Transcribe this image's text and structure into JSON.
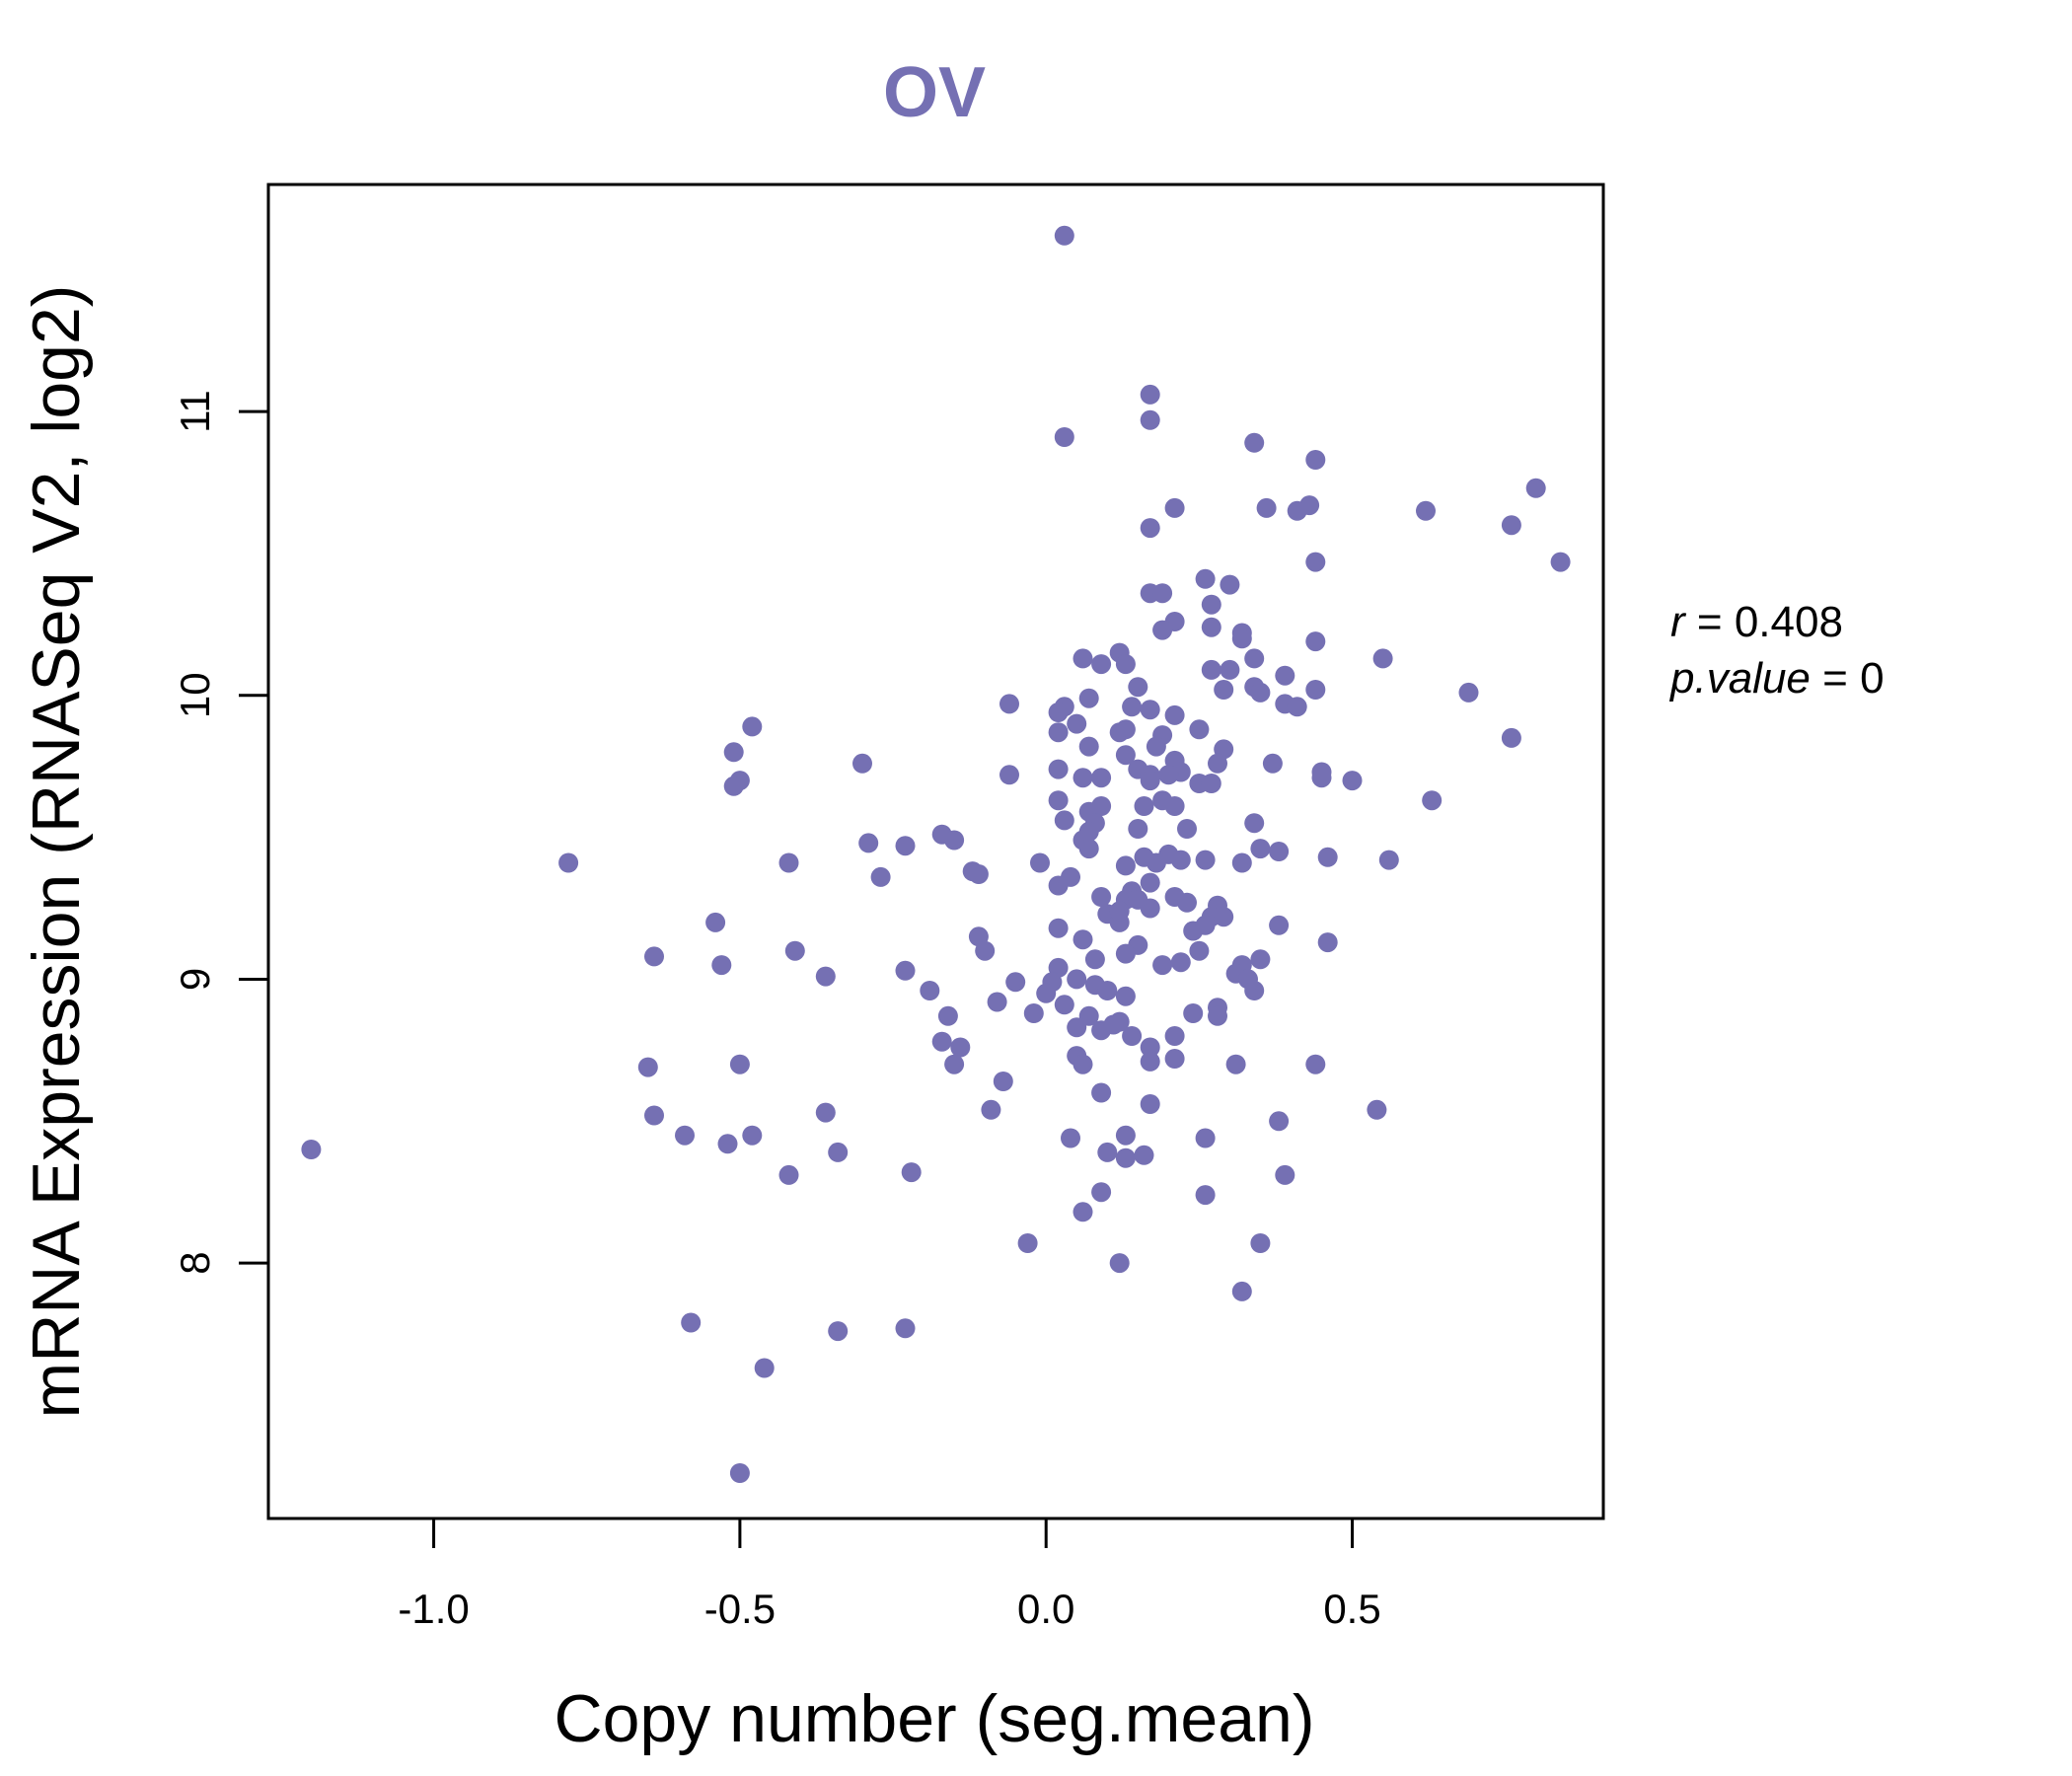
{
  "chart_data": {
    "type": "scatter",
    "title": "OV",
    "xlabel": "Copy number (seg.mean)",
    "ylabel": "mRNA Expression (RNASeq V2, log2)",
    "xlim": [
      -1.27,
      0.91
    ],
    "ylim": [
      7.1,
      11.8
    ],
    "xticks": [
      -1.0,
      -0.5,
      0.0,
      0.5
    ],
    "xtick_labels": [
      "-1.0",
      "-0.5",
      "0.0",
      "0.5"
    ],
    "yticks": [
      8,
      9,
      10,
      11
    ],
    "ytick_labels": [
      "8",
      "9",
      "10",
      "11"
    ],
    "point_color": "#7570b3",
    "stats": {
      "r_symbol": "r",
      "eq": "=",
      "r_value": "0.408",
      "p_symbol": "p.value",
      "p_value": "0"
    },
    "points": [
      [
        0.03,
        11.62
      ],
      [
        0.17,
        11.06
      ],
      [
        0.03,
        10.91
      ],
      [
        0.17,
        10.97
      ],
      [
        0.34,
        10.89
      ],
      [
        0.44,
        10.83
      ],
      [
        0.8,
        10.73
      ],
      [
        0.21,
        10.66
      ],
      [
        0.36,
        10.66
      ],
      [
        0.41,
        10.65
      ],
      [
        0.43,
        10.67
      ],
      [
        0.62,
        10.65
      ],
      [
        0.76,
        10.6
      ],
      [
        0.17,
        10.59
      ],
      [
        0.84,
        10.47
      ],
      [
        0.44,
        10.47
      ],
      [
        0.26,
        10.41
      ],
      [
        0.3,
        10.39
      ],
      [
        0.17,
        10.36
      ],
      [
        0.19,
        10.36
      ],
      [
        0.27,
        10.32
      ],
      [
        0.21,
        10.26
      ],
      [
        0.19,
        10.23
      ],
      [
        0.27,
        10.24
      ],
      [
        0.32,
        10.22
      ],
      [
        0.44,
        10.19
      ],
      [
        0.32,
        10.2
      ],
      [
        0.12,
        10.15
      ],
      [
        0.06,
        10.13
      ],
      [
        0.09,
        10.11
      ],
      [
        0.13,
        10.11
      ],
      [
        0.34,
        10.13
      ],
      [
        0.55,
        10.13
      ],
      [
        0.27,
        10.09
      ],
      [
        0.3,
        10.09
      ],
      [
        0.39,
        10.07
      ],
      [
        0.15,
        10.03
      ],
      [
        0.29,
        10.02
      ],
      [
        0.34,
        10.03
      ],
      [
        0.35,
        10.01
      ],
      [
        0.44,
        10.02
      ],
      [
        0.69,
        10.01
      ],
      [
        0.07,
        9.99
      ],
      [
        0.03,
        9.96
      ],
      [
        -0.06,
        9.97
      ],
      [
        0.02,
        9.94
      ],
      [
        0.14,
        9.96
      ],
      [
        0.17,
        9.95
      ],
      [
        0.21,
        9.93
      ],
      [
        0.39,
        9.97
      ],
      [
        0.41,
        9.96
      ],
      [
        -0.48,
        9.89
      ],
      [
        0.02,
        9.87
      ],
      [
        0.05,
        9.9
      ],
      [
        0.12,
        9.87
      ],
      [
        0.13,
        9.88
      ],
      [
        0.19,
        9.86
      ],
      [
        0.25,
        9.88
      ],
      [
        -0.51,
        9.8
      ],
      [
        0.07,
        9.82
      ],
      [
        0.13,
        9.79
      ],
      [
        0.18,
        9.82
      ],
      [
        0.29,
        9.81
      ],
      [
        0.76,
        9.85
      ],
      [
        -0.3,
        9.76
      ],
      [
        0.02,
        9.74
      ],
      [
        0.15,
        9.74
      ],
      [
        0.17,
        9.72
      ],
      [
        0.21,
        9.77
      ],
      [
        0.22,
        9.73
      ],
      [
        0.28,
        9.76
      ],
      [
        0.37,
        9.76
      ],
      [
        -0.5,
        9.7
      ],
      [
        -0.51,
        9.68
      ],
      [
        -0.06,
        9.72
      ],
      [
        0.06,
        9.71
      ],
      [
        0.09,
        9.71
      ],
      [
        0.17,
        9.7
      ],
      [
        0.2,
        9.72
      ],
      [
        0.25,
        9.69
      ],
      [
        0.27,
        9.69
      ],
      [
        0.45,
        9.71
      ],
      [
        0.45,
        9.73
      ],
      [
        0.5,
        9.7
      ],
      [
        0.02,
        9.63
      ],
      [
        0.19,
        9.63
      ],
      [
        0.21,
        9.61
      ],
      [
        0.07,
        9.59
      ],
      [
        0.09,
        9.61
      ],
      [
        0.16,
        9.61
      ],
      [
        0.63,
        9.63
      ],
      [
        0.03,
        9.56
      ],
      [
        0.08,
        9.55
      ],
      [
        -0.17,
        9.51
      ],
      [
        -0.15,
        9.49
      ],
      [
        0.06,
        9.49
      ],
      [
        0.15,
        9.53
      ],
      [
        0.23,
        9.53
      ],
      [
        0.34,
        9.55
      ],
      [
        0.07,
        9.52
      ],
      [
        -0.29,
        9.48
      ],
      [
        -0.23,
        9.47
      ],
      [
        0.07,
        9.46
      ],
      [
        0.16,
        9.43
      ],
      [
        0.2,
        9.44
      ],
      [
        0.35,
        9.46
      ],
      [
        0.38,
        9.45
      ],
      [
        0.46,
        9.43
      ],
      [
        -0.78,
        9.41
      ],
      [
        -0.42,
        9.41
      ],
      [
        -0.01,
        9.41
      ],
      [
        0.13,
        9.4
      ],
      [
        0.18,
        9.41
      ],
      [
        0.22,
        9.42
      ],
      [
        0.26,
        9.42
      ],
      [
        0.32,
        9.41
      ],
      [
        0.56,
        9.42
      ],
      [
        -0.27,
        9.36
      ],
      [
        -0.12,
        9.38
      ],
      [
        -0.11,
        9.37
      ],
      [
        0.04,
        9.36
      ],
      [
        0.02,
        9.33
      ],
      [
        0.14,
        9.31
      ],
      [
        0.17,
        9.34
      ],
      [
        0.09,
        9.29
      ],
      [
        0.13,
        9.28
      ],
      [
        0.15,
        9.28
      ],
      [
        0.21,
        9.29
      ],
      [
        0.17,
        9.25
      ],
      [
        0.23,
        9.27
      ],
      [
        0.28,
        9.26
      ],
      [
        0.1,
        9.23
      ],
      [
        0.12,
        9.2
      ],
      [
        0.12,
        9.24
      ],
      [
        0.27,
        9.22
      ],
      [
        0.29,
        9.22
      ],
      [
        0.38,
        9.19
      ],
      [
        -0.54,
        9.2
      ],
      [
        0.02,
        9.18
      ],
      [
        0.24,
        9.17
      ],
      [
        0.26,
        9.19
      ],
      [
        -0.11,
        9.15
      ],
      [
        0.06,
        9.14
      ],
      [
        0.15,
        9.12
      ],
      [
        0.46,
        9.13
      ],
      [
        -0.41,
        9.1
      ],
      [
        -0.1,
        9.1
      ],
      [
        0.13,
        9.09
      ],
      [
        0.25,
        9.1
      ],
      [
        -0.64,
        9.08
      ],
      [
        -0.53,
        9.05
      ],
      [
        0.08,
        9.07
      ],
      [
        0.19,
        9.05
      ],
      [
        0.22,
        9.06
      ],
      [
        0.35,
        9.07
      ],
      [
        -0.23,
        9.03
      ],
      [
        0.02,
        9.04
      ],
      [
        0.32,
        9.05
      ],
      [
        -0.36,
        9.01
      ],
      [
        0.05,
        9.0
      ],
      [
        0.31,
        9.02
      ],
      [
        0.33,
        9.0
      ],
      [
        -0.05,
        8.99
      ],
      [
        0.01,
        8.99
      ],
      [
        0.08,
        8.98
      ],
      [
        -0.19,
        8.96
      ],
      [
        0.1,
        8.96
      ],
      [
        0.13,
        8.94
      ],
      [
        0.34,
        8.96
      ],
      [
        -0.08,
        8.92
      ],
      [
        0.0,
        8.95
      ],
      [
        0.03,
        8.91
      ],
      [
        0.28,
        8.9
      ],
      [
        -0.02,
        8.88
      ],
      [
        0.07,
        8.87
      ],
      [
        0.24,
        8.88
      ],
      [
        0.28,
        8.87
      ],
      [
        -0.16,
        8.87
      ],
      [
        0.12,
        8.85
      ],
      [
        0.05,
        8.83
      ],
      [
        0.09,
        8.82
      ],
      [
        0.11,
        8.84
      ],
      [
        0.14,
        8.8
      ],
      [
        0.21,
        8.8
      ],
      [
        -0.17,
        8.78
      ],
      [
        -0.14,
        8.76
      ],
      [
        0.17,
        8.76
      ],
      [
        0.05,
        8.73
      ],
      [
        0.21,
        8.72
      ],
      [
        -0.15,
        8.7
      ],
      [
        0.17,
        8.71
      ],
      [
        -0.5,
        8.7
      ],
      [
        -0.65,
        8.69
      ],
      [
        0.06,
        8.7
      ],
      [
        0.31,
        8.7
      ],
      [
        0.44,
        8.7
      ],
      [
        -0.07,
        8.64
      ],
      [
        0.09,
        8.6
      ],
      [
        0.17,
        8.56
      ],
      [
        -0.36,
        8.53
      ],
      [
        -0.64,
        8.52
      ],
      [
        -0.09,
        8.54
      ],
      [
        0.54,
        8.54
      ],
      [
        0.38,
        8.5
      ],
      [
        -0.59,
        8.45
      ],
      [
        -0.48,
        8.45
      ],
      [
        0.04,
        8.44
      ],
      [
        0.13,
        8.45
      ],
      [
        0.26,
        8.44
      ],
      [
        -0.52,
        8.42
      ],
      [
        0.1,
        8.39
      ],
      [
        0.13,
        8.37
      ],
      [
        0.16,
        8.38
      ],
      [
        -0.34,
        8.39
      ],
      [
        -1.2,
        8.4
      ],
      [
        -0.42,
        8.31
      ],
      [
        -0.22,
        8.32
      ],
      [
        0.39,
        8.31
      ],
      [
        0.09,
        8.25
      ],
      [
        0.26,
        8.24
      ],
      [
        0.06,
        8.18
      ],
      [
        -0.03,
        8.07
      ],
      [
        0.35,
        8.07
      ],
      [
        0.12,
        8.0
      ],
      [
        0.32,
        7.9
      ],
      [
        -0.58,
        7.79
      ],
      [
        -0.34,
        7.76
      ],
      [
        -0.23,
        7.77
      ],
      [
        -0.46,
        7.63
      ],
      [
        -0.5,
        7.26
      ]
    ]
  }
}
